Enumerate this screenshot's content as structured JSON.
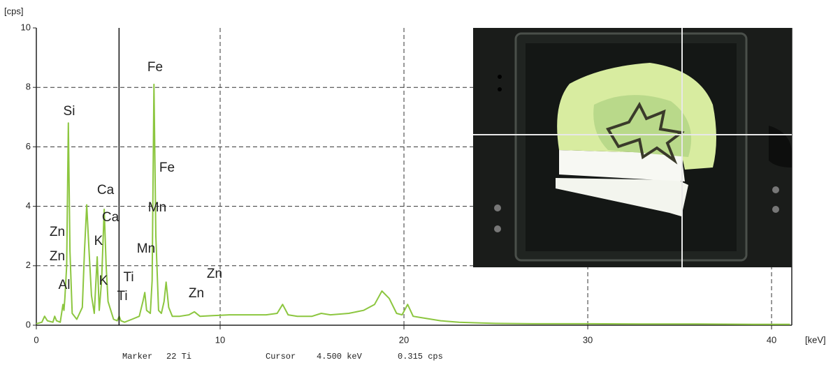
{
  "chart_data": {
    "type": "line",
    "y_unit": "[cps]",
    "x_unit": "[keV]",
    "x": [
      0,
      0.3,
      0.45,
      0.6,
      0.9,
      1.0,
      1.1,
      1.3,
      1.45,
      1.5,
      1.55,
      1.65,
      1.74,
      1.83,
      1.95,
      2.2,
      2.5,
      2.62,
      2.74,
      2.86,
      3.0,
      3.15,
      3.31,
      3.42,
      3.55,
      3.69,
      3.8,
      3.9,
      4.0,
      4.2,
      4.4,
      4.51,
      4.6,
      4.8,
      5.2,
      5.6,
      5.8,
      5.9,
      6.0,
      6.2,
      6.3,
      6.4,
      6.5,
      6.65,
      6.8,
      6.95,
      7.06,
      7.2,
      7.4,
      7.8,
      8.3,
      8.6,
      8.9,
      9.5,
      10.5,
      11.5,
      12.5,
      13.1,
      13.4,
      13.7,
      14.2,
      15.0,
      15.5,
      16.0,
      17.0,
      17.8,
      18.4,
      18.8,
      19.2,
      19.6,
      19.9,
      20.2,
      20.5,
      21.0,
      22,
      23,
      24,
      25,
      27,
      30,
      33,
      36,
      39,
      41
    ],
    "values": [
      0.05,
      0.1,
      0.3,
      0.15,
      0.1,
      0.3,
      0.15,
      0.1,
      0.7,
      0.5,
      0.9,
      2.0,
      6.8,
      2.5,
      0.4,
      0.2,
      0.6,
      2.5,
      4.05,
      2.6,
      1.0,
      0.4,
      2.3,
      0.5,
      1.5,
      3.9,
      2.0,
      0.8,
      0.6,
      0.2,
      0.15,
      0.3,
      0.15,
      0.1,
      0.2,
      0.3,
      0.8,
      1.1,
      0.5,
      0.4,
      1.5,
      8.1,
      3.0,
      0.5,
      0.4,
      0.8,
      1.45,
      0.6,
      0.3,
      0.3,
      0.35,
      0.45,
      0.3,
      0.32,
      0.35,
      0.35,
      0.35,
      0.4,
      0.7,
      0.35,
      0.3,
      0.3,
      0.4,
      0.35,
      0.4,
      0.5,
      0.7,
      1.15,
      0.9,
      0.4,
      0.35,
      0.7,
      0.3,
      0.25,
      0.15,
      0.1,
      0.08,
      0.06,
      0.05,
      0.05,
      0.04,
      0.04,
      0.03,
      0.03
    ],
    "color": "#8cc63f",
    "xlim": [
      0,
      41.1
    ],
    "ylim": [
      0,
      10
    ],
    "xticks": [
      0,
      10,
      20,
      30,
      40
    ],
    "yticks": [
      0,
      2,
      4,
      6,
      8,
      10
    ],
    "grid": true,
    "annotations": [
      "Fe",
      "Si",
      "Fe",
      "Ca",
      "Mn",
      "Ca",
      "Zn",
      "K",
      "Zn",
      "Mn",
      "Ti",
      "Zn",
      "Al",
      "K",
      "Ti",
      "Zn"
    ],
    "marker": {
      "label": "Marker",
      "value": "22 Ti"
    },
    "cursor": {
      "label": "Cursor",
      "position": {
        "value": 4.5,
        "label": "4.500 keV"
      },
      "counts": "0.315 cps",
      "color": "#111111"
    }
  }
}
